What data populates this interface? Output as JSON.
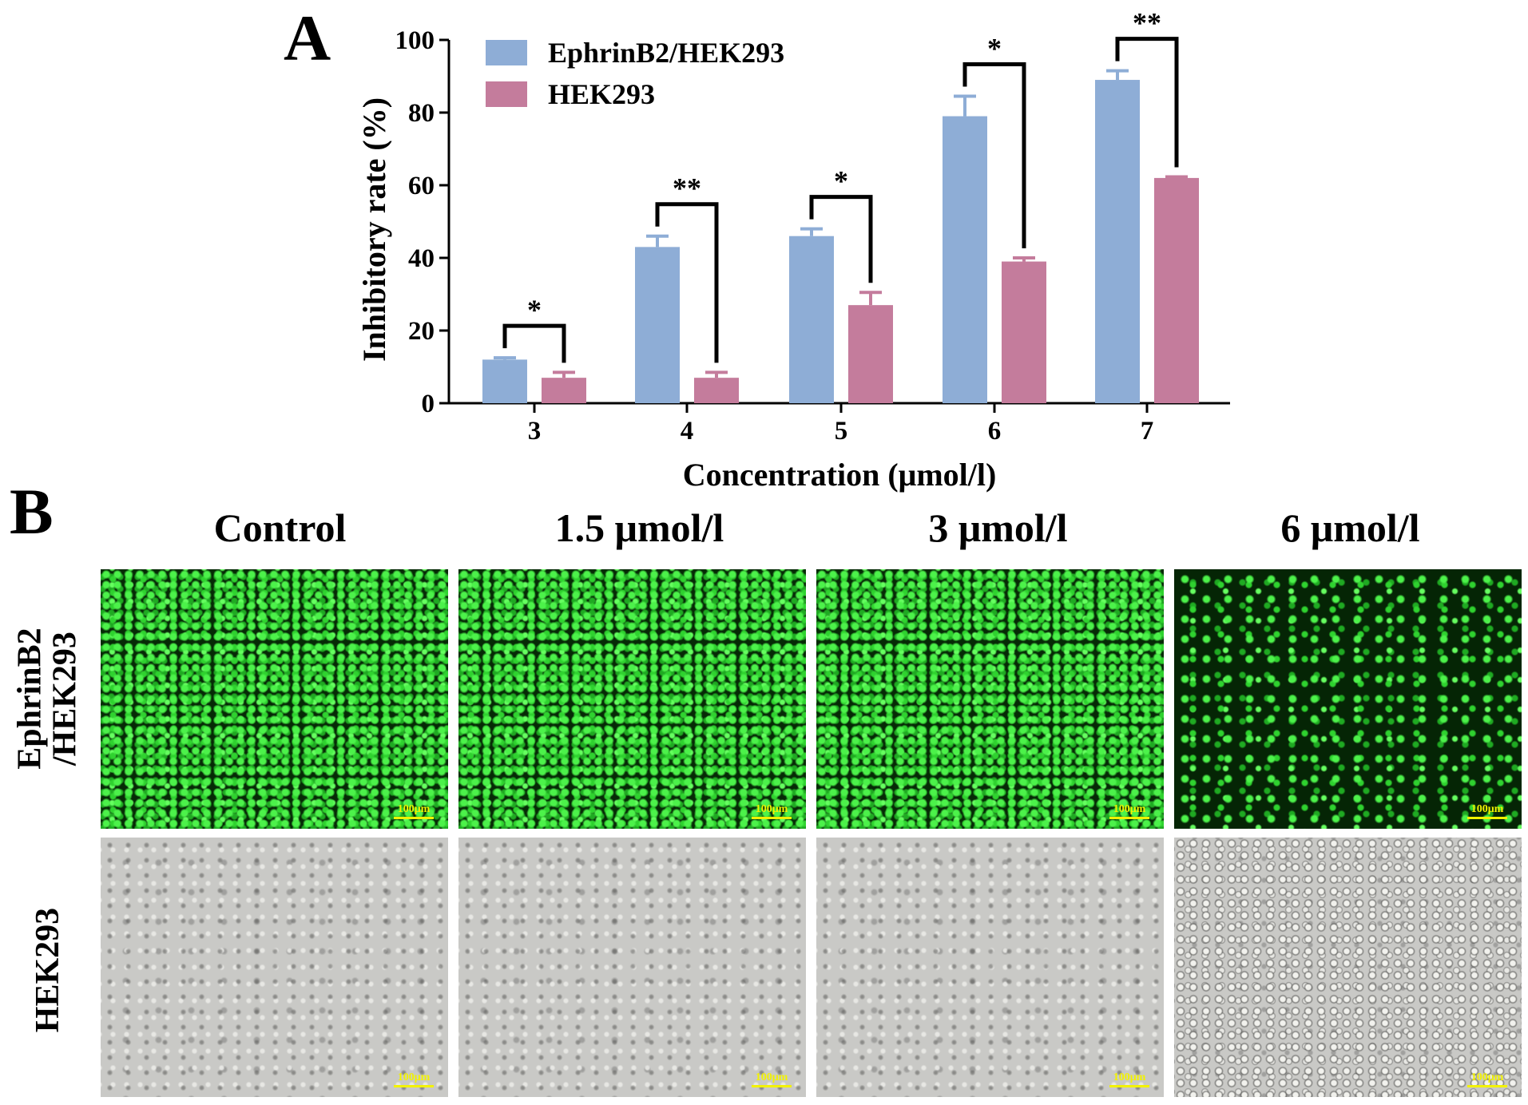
{
  "panel_a_label": "A",
  "panel_b_label": "B",
  "colors": {
    "series1": "#8eadd6",
    "series2": "#c47c9c",
    "axis": "#000000",
    "scalebar": "#f2f200"
  },
  "chart_data": {
    "type": "bar",
    "xlabel": "Concentration (μmol/l)",
    "ylabel": "Inhibitory rate (%)",
    "ylim": [
      0,
      100
    ],
    "yticks": [
      0,
      20,
      40,
      60,
      80,
      100
    ],
    "categories": [
      "3",
      "4",
      "5",
      "6",
      "7"
    ],
    "series": [
      {
        "name": "EphrinB2/HEK293",
        "values": [
          12,
          43,
          46,
          79,
          89
        ],
        "errors": [
          0.5,
          3,
          2,
          5.5,
          2.5
        ]
      },
      {
        "name": "HEK293",
        "values": [
          7,
          7,
          27,
          39,
          62
        ],
        "errors": [
          1.5,
          1.5,
          3.5,
          1,
          0.3
        ]
      }
    ],
    "significance": [
      "*",
      "**",
      "*",
      "*",
      "**"
    ],
    "legend_position": "top-left",
    "grid": false
  },
  "panel_b": {
    "columns": [
      "Control",
      "1.5 μmol/l",
      "3 μmol/l",
      "6 μmol/l"
    ],
    "rows": [
      {
        "label_line1": "EphrinB2",
        "label_line2": "/HEK293"
      },
      {
        "label_line1": "HEK293",
        "label_line2": ""
      }
    ],
    "scale_bar": "100μm"
  }
}
